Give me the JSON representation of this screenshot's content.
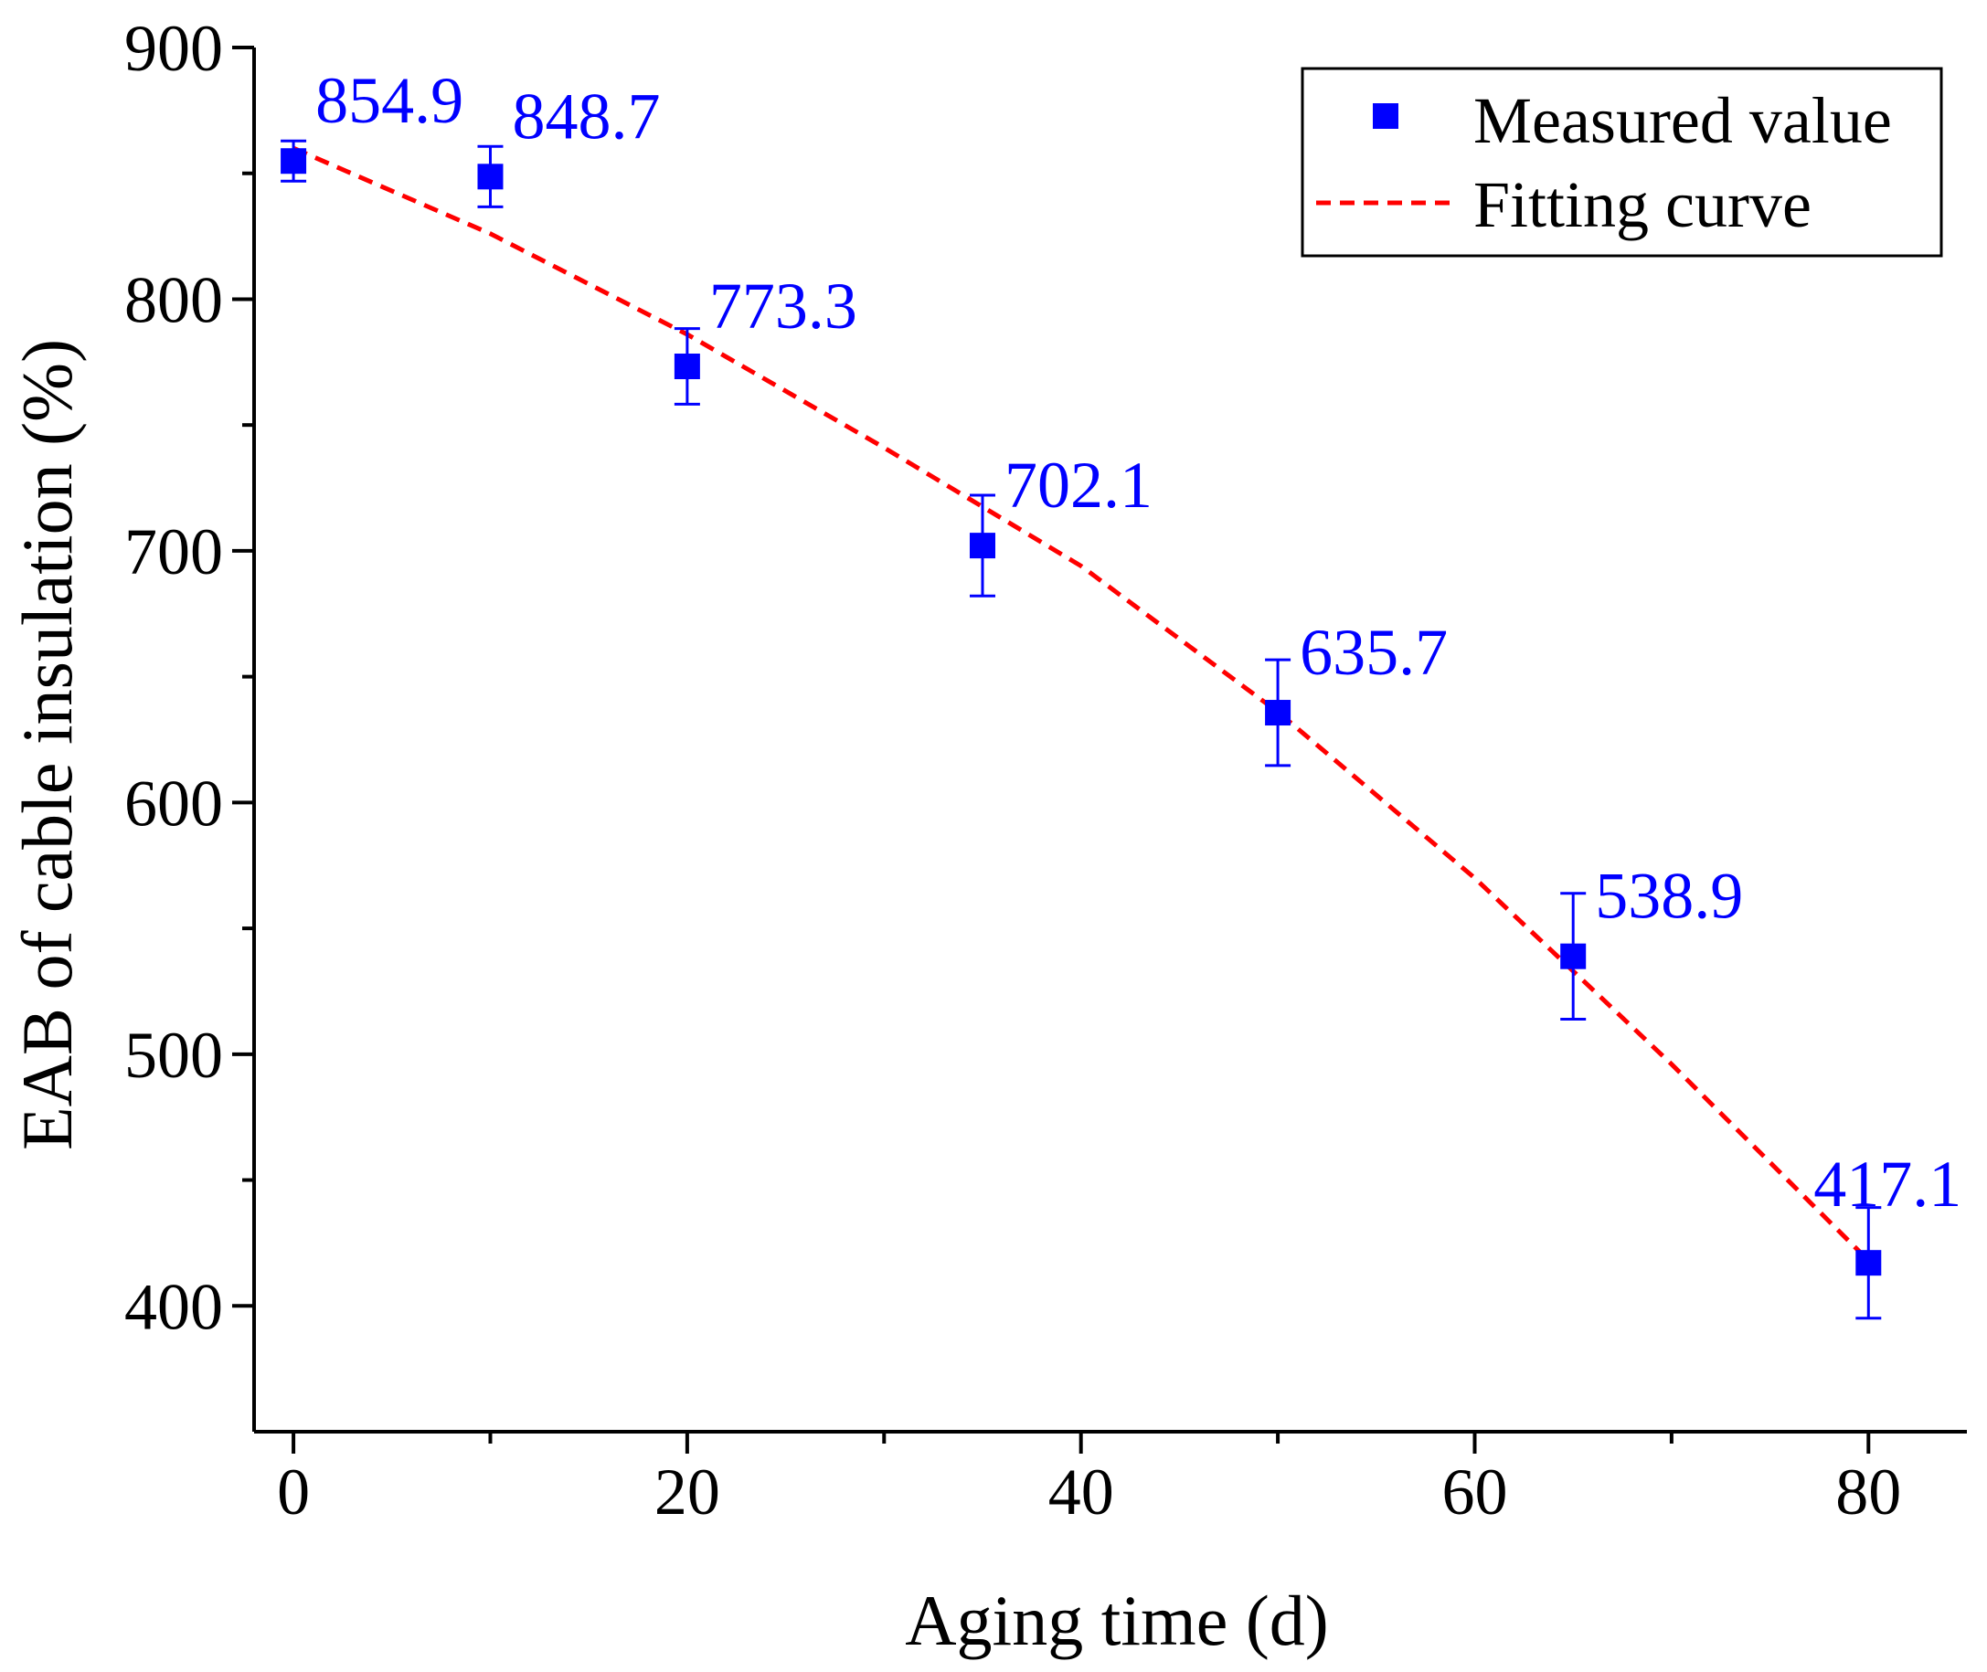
{
  "colors": {
    "marker": "#0000ff",
    "fit": "#ff0000",
    "axis": "#000000",
    "background": "#ffffff"
  },
  "chart_data": {
    "type": "scatter",
    "title": "",
    "xlabel": "Aging time (d)",
    "ylabel": "EAB of cable insulation (%)",
    "xlim": [
      -2,
      85
    ],
    "ylim": [
      350,
      900
    ],
    "xticks": [
      0,
      20,
      40,
      60,
      80
    ],
    "xticks_minor": [
      10,
      30,
      50,
      70
    ],
    "yticks": [
      400,
      500,
      600,
      700,
      800,
      900
    ],
    "yticks_minor": [
      450,
      550,
      650,
      750,
      850
    ],
    "grid": false,
    "legend_position": "top-right",
    "legend": [
      "Measured value",
      "Fitting curve"
    ],
    "series": [
      {
        "name": "Measured value",
        "marker": "square",
        "points": [
          {
            "x": 0,
            "y": 854.9,
            "err": 8,
            "label": "854.9"
          },
          {
            "x": 10,
            "y": 848.7,
            "err": 12,
            "label": "848.7"
          },
          {
            "x": 20,
            "y": 773.3,
            "err": 15,
            "label": "773.3"
          },
          {
            "x": 35,
            "y": 702.1,
            "err": 20,
            "label": "702.1"
          },
          {
            "x": 50,
            "y": 635.7,
            "err": 21,
            "label": "635.7"
          },
          {
            "x": 65,
            "y": 538.9,
            "err": 25,
            "label": "538.9"
          },
          {
            "x": 80,
            "y": 417.1,
            "err": 22,
            "label": "417.1"
          }
        ]
      },
      {
        "name": "Fitting curve",
        "style": "dashed",
        "points": [
          {
            "x": 0,
            "y": 860
          },
          {
            "x": 10,
            "y": 826
          },
          {
            "x": 20,
            "y": 786
          },
          {
            "x": 30,
            "y": 741
          },
          {
            "x": 40,
            "y": 694
          },
          {
            "x": 50,
            "y": 636
          },
          {
            "x": 60,
            "y": 570
          },
          {
            "x": 70,
            "y": 496
          },
          {
            "x": 80,
            "y": 418
          }
        ]
      }
    ]
  }
}
